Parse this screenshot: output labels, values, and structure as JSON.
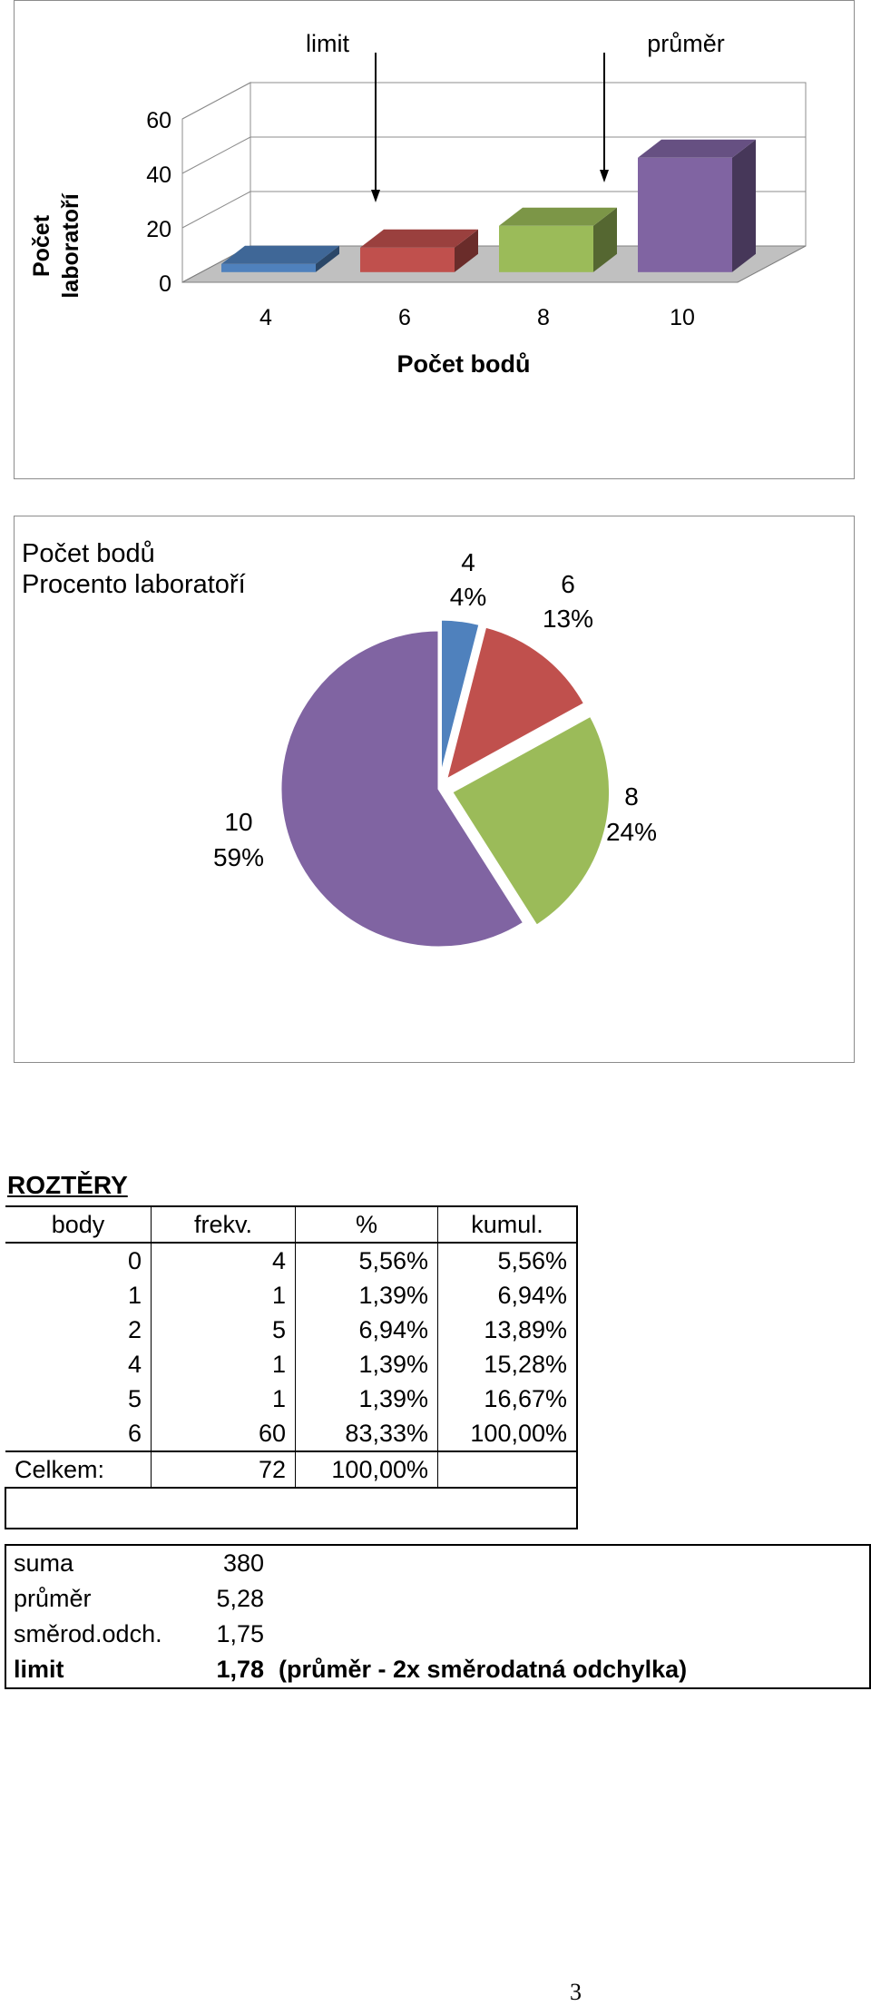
{
  "chart_data": [
    {
      "type": "bar",
      "categories": [
        "4",
        "6",
        "8",
        "10"
      ],
      "values": [
        3,
        9,
        17,
        42
      ],
      "xlabel": "Počet bodů",
      "ylabel": "Počet laboratoří",
      "ylim": [
        0,
        60
      ],
      "yticks": [
        "0",
        "20",
        "40",
        "60"
      ],
      "annotations": [
        "limit",
        "průměr"
      ],
      "grid": true,
      "colors": [
        "#4f81bd",
        "#c0504d",
        "#9bbb59",
        "#8064a2"
      ]
    },
    {
      "type": "pie",
      "legend_title": [
        "Počet bodů",
        "Procento laboratoří"
      ],
      "categories": [
        "4",
        "6",
        "8",
        "10"
      ],
      "values": [
        4,
        13,
        24,
        59
      ],
      "percent_labels": [
        "4%",
        "13%",
        "24%",
        "59%"
      ],
      "colors": [
        "#4f81bd",
        "#c0504d",
        "#9bbb59",
        "#8064a2"
      ]
    }
  ],
  "rozptyly": {
    "title": "ROZTĚRY",
    "headers": [
      "body",
      "frekv.",
      "%",
      "kumul."
    ],
    "rows": [
      [
        "0",
        "4",
        "5,56%",
        "5,56%"
      ],
      [
        "1",
        "1",
        "1,39%",
        "6,94%"
      ],
      [
        "2",
        "5",
        "6,94%",
        "13,89%"
      ],
      [
        "4",
        "1",
        "1,39%",
        "15,28%"
      ],
      [
        "5",
        "1",
        "1,39%",
        "16,67%"
      ],
      [
        "6",
        "60",
        "83,33%",
        "100,00%"
      ]
    ],
    "total": {
      "label": "Celkem:",
      "freq": "72",
      "percent": "100,00%"
    }
  },
  "stats": [
    {
      "label": "suma",
      "value": "380",
      "note": ""
    },
    {
      "label": "průměr",
      "value": "5,28",
      "note": ""
    },
    {
      "label": "směrod.odch.",
      "value": "1,75",
      "note": ""
    },
    {
      "label": "limit",
      "value": "1,78",
      "note": "(průměr - 2x směrodatná odchylka)"
    }
  ],
  "page_number": "3"
}
